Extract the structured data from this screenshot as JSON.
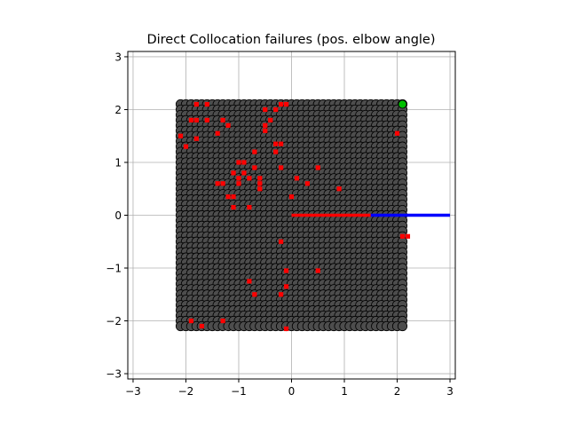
{
  "chart_data": {
    "type": "scatter",
    "title": "Direct Collocation failures (pos. elbow angle)",
    "xlabel": "",
    "ylabel": "",
    "xlim": [
      -3.1,
      3.1
    ],
    "ylim": [
      -3.1,
      3.1
    ],
    "xticks": [
      -3,
      -2,
      -1,
      0,
      1,
      2,
      3
    ],
    "yticks": [
      -3,
      -2,
      -1,
      0,
      1,
      2,
      3
    ],
    "grid": true,
    "colors": {
      "success_marker": "#4d4d4d",
      "failure_marker": "#ff0000",
      "goal_marker": "#00c000",
      "upper_link": "#ff0000",
      "lower_link": "#0000ff",
      "grid": "#b0b0b0"
    },
    "grid_points": {
      "x_min": -2.1,
      "x_max": 2.1,
      "y_min": -2.1,
      "y_max": 2.1,
      "step": 0.1
    },
    "failures": [
      [
        -1.8,
        2.1
      ],
      [
        -1.6,
        2.1
      ],
      [
        -0.2,
        2.1
      ],
      [
        -0.1,
        2.1
      ],
      [
        -0.5,
        2.0
      ],
      [
        -0.3,
        2.0
      ],
      [
        -1.9,
        1.8
      ],
      [
        -1.8,
        1.8
      ],
      [
        -1.6,
        1.8
      ],
      [
        -1.3,
        1.8
      ],
      [
        -0.4,
        1.8
      ],
      [
        -1.2,
        1.7
      ],
      [
        -0.5,
        1.7
      ],
      [
        -1.4,
        1.55
      ],
      [
        2.0,
        1.55
      ],
      [
        -2.1,
        1.5
      ],
      [
        -1.8,
        1.45
      ],
      [
        -0.5,
        1.6
      ],
      [
        -2.0,
        1.3
      ],
      [
        -0.2,
        1.35
      ],
      [
        -0.3,
        1.35
      ],
      [
        -0.7,
        1.2
      ],
      [
        -0.3,
        1.2
      ],
      [
        -0.9,
        1.0
      ],
      [
        -1.0,
        1.0
      ],
      [
        -0.2,
        0.9
      ],
      [
        -0.7,
        0.9
      ],
      [
        0.5,
        0.9
      ],
      [
        -1.1,
        0.8
      ],
      [
        -0.9,
        0.8
      ],
      [
        -1.0,
        0.7
      ],
      [
        -0.8,
        0.7
      ],
      [
        -0.6,
        0.7
      ],
      [
        0.1,
        0.7
      ],
      [
        -1.0,
        0.6
      ],
      [
        -1.3,
        0.6
      ],
      [
        -1.4,
        0.6
      ],
      [
        -0.6,
        0.6
      ],
      [
        0.3,
        0.6
      ],
      [
        -0.6,
        0.5
      ],
      [
        0.9,
        0.5
      ],
      [
        -1.2,
        0.35
      ],
      [
        -1.1,
        0.35
      ],
      [
        0.0,
        0.35
      ],
      [
        -1.1,
        0.15
      ],
      [
        -0.8,
        0.15
      ],
      [
        2.1,
        -0.4
      ],
      [
        2.2,
        -0.4
      ],
      [
        -0.2,
        -0.5
      ],
      [
        -0.1,
        -1.05
      ],
      [
        0.5,
        -1.05
      ],
      [
        -0.8,
        -1.25
      ],
      [
        -0.1,
        -1.35
      ],
      [
        -0.7,
        -1.5
      ],
      [
        -0.2,
        -1.5
      ],
      [
        -1.9,
        -2.0
      ],
      [
        -1.3,
        -2.0
      ],
      [
        -1.7,
        -2.1
      ],
      [
        -0.1,
        -2.15
      ]
    ],
    "goal_point": [
      2.1,
      2.1
    ],
    "links": [
      {
        "from": [
          0.0,
          0.0
        ],
        "to": [
          1.5,
          0.0
        ]
      },
      {
        "from": [
          1.5,
          0.0
        ],
        "to": [
          3.0,
          0.0
        ]
      }
    ]
  }
}
